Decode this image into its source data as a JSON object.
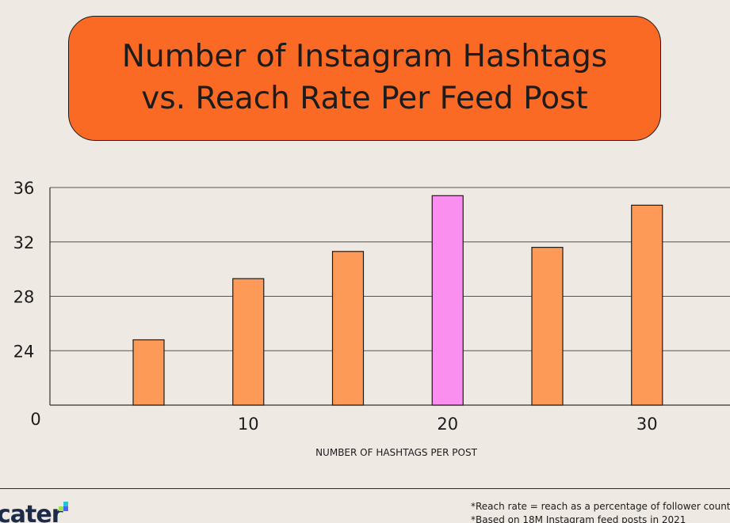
{
  "title": {
    "line1": "Number of Instagram Hashtags",
    "line2": "vs. Reach Rate Per Feed Post"
  },
  "chart_data": {
    "type": "bar",
    "title": "Number of Instagram Hashtags vs. Reach Rate Per Feed Post",
    "xlabel": "NUMBER OF HASHTAGS PER POST",
    "ylabel": "",
    "x_ticks": [
      "10",
      "20",
      "30"
    ],
    "y_ticks": [
      "0",
      "24",
      "28",
      "32",
      "36"
    ],
    "axis_break": true,
    "ylim": [
      20,
      36
    ],
    "grid": true,
    "categories": [
      "5",
      "10",
      "15",
      "20",
      "25",
      "30"
    ],
    "values": [
      24.8,
      29.3,
      31.3,
      35.4,
      31.6,
      34.7
    ],
    "highlight_category": "20",
    "colors": {
      "bar": "#fd9a57",
      "highlight": "#fb8ff0",
      "outline": "#1c1c1c"
    }
  },
  "brand": {
    "logo_text": "cater",
    "colors": [
      "#27c1d9",
      "#9ee24a",
      "#3b6ef5"
    ]
  },
  "footnotes": {
    "line1": "*Reach rate = reach as a percentage of follower count",
    "line2": "*Based on 18M Instagram feed posts in 2021"
  },
  "colors": {
    "background": "#efe9e3",
    "title_box": "#fb6a24"
  }
}
